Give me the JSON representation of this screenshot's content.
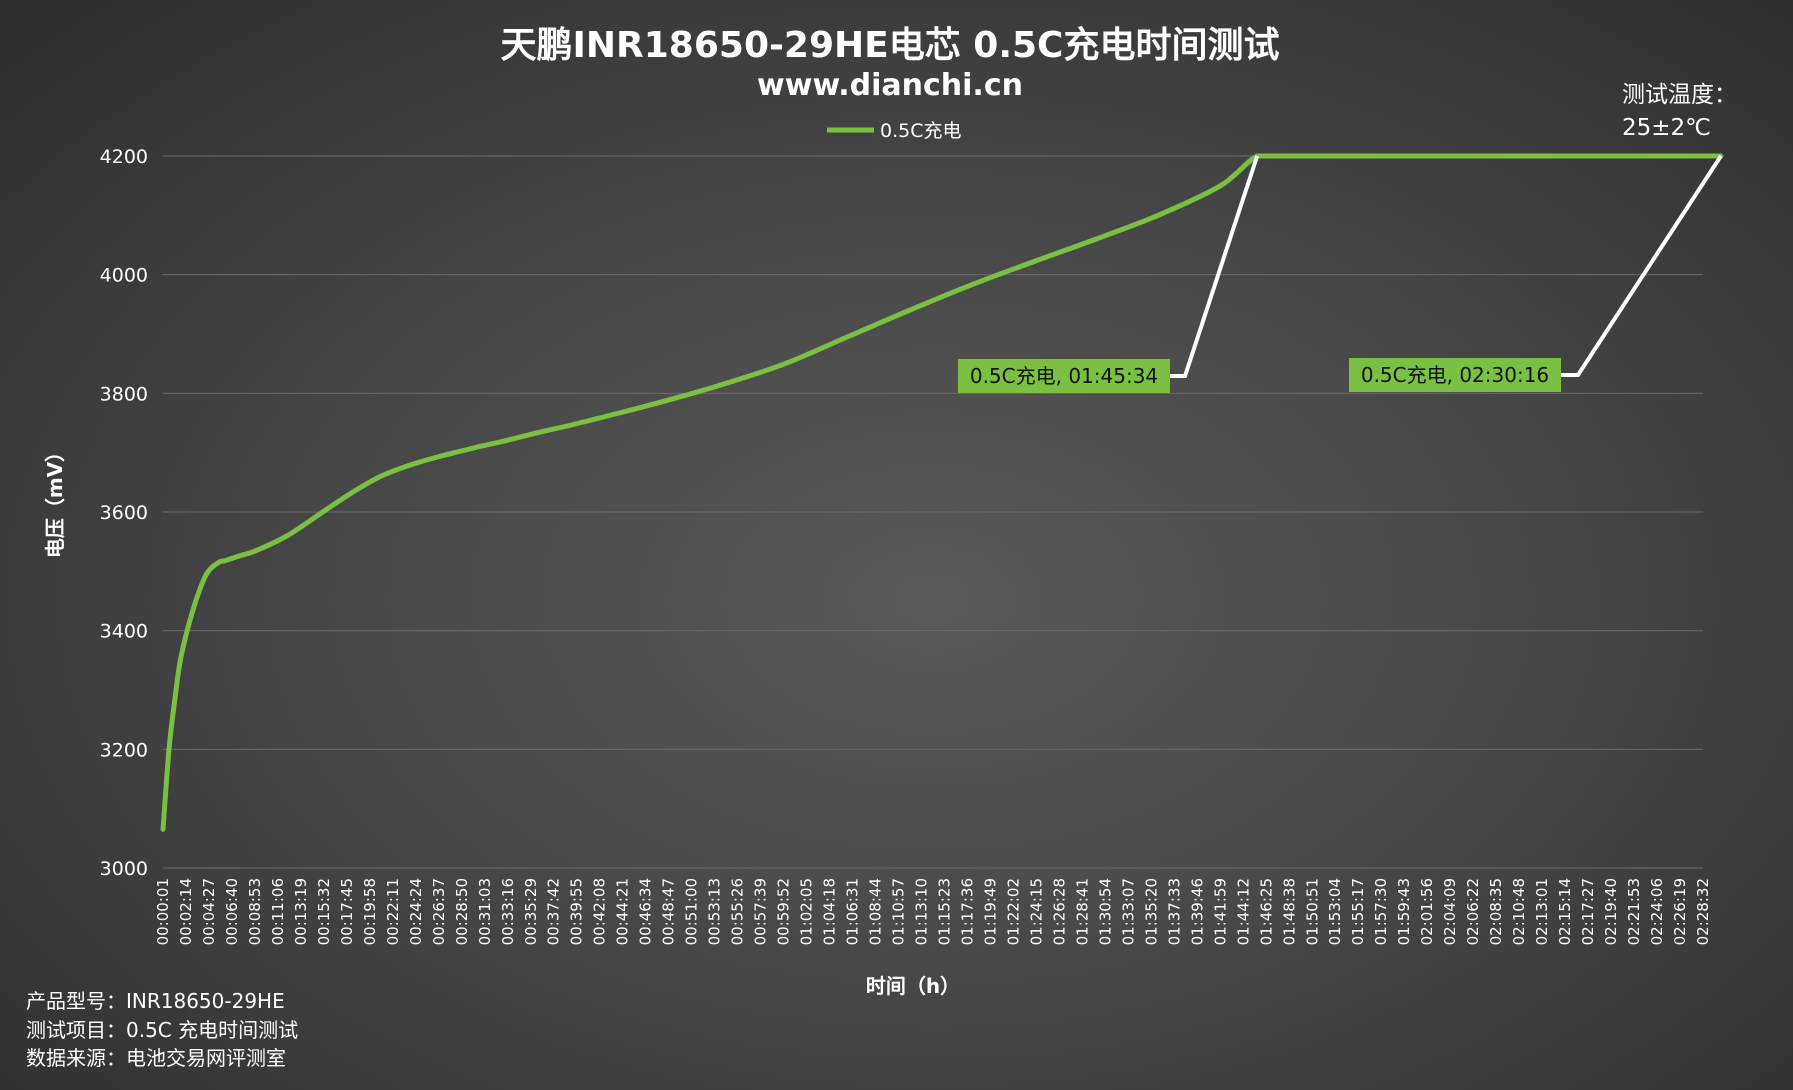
{
  "colors": {
    "series": "#7ac143",
    "label_box": "#7ac143",
    "grid": "#6a6a6a",
    "leader": "#ffffff"
  },
  "chart_data": {
    "type": "line",
    "title": "天鹏INR18650-29HE电芯 0.5C充电时间测试",
    "subtitle": "www.dianchi.cn",
    "xlabel": "时间（h）",
    "ylabel": "电压（mV）",
    "ylim": [
      3000,
      4200
    ],
    "yticks": [
      "3000",
      "3200",
      "3400",
      "3600",
      "3800",
      "4000",
      "4200"
    ],
    "grid": true,
    "legend_position": "top-center",
    "x_tick_labels": [
      "00:00:01",
      "00:02:14",
      "00:04:27",
      "00:06:40",
      "00:08:53",
      "00:11:06",
      "00:13:19",
      "00:15:32",
      "00:17:45",
      "00:19:58",
      "00:22:11",
      "00:24:24",
      "00:26:37",
      "00:28:50",
      "00:31:03",
      "00:33:16",
      "00:35:29",
      "00:37:42",
      "00:39:55",
      "00:42:08",
      "00:44:21",
      "00:46:34",
      "00:48:47",
      "00:51:00",
      "00:53:13",
      "00:55:26",
      "00:57:39",
      "00:59:52",
      "01:02:05",
      "01:04:18",
      "01:06:31",
      "01:08:44",
      "01:10:57",
      "01:13:10",
      "01:15:23",
      "01:17:36",
      "01:19:49",
      "01:22:02",
      "01:24:15",
      "01:26:28",
      "01:28:41",
      "01:30:54",
      "01:33:07",
      "01:35:20",
      "01:37:33",
      "01:39:46",
      "01:41:59",
      "01:44:12",
      "01:46:25",
      "01:48:38",
      "01:50:51",
      "01:53:04",
      "01:55:17",
      "01:57:30",
      "01:59:43",
      "02:01:56",
      "02:04:09",
      "02:06:22",
      "02:08:35",
      "02:10:48",
      "02:13:01",
      "02:15:14",
      "02:17:27",
      "02:19:40",
      "02:21:53",
      "02:24:06",
      "02:26:19",
      "02:28:32"
    ],
    "series": [
      {
        "name": "0.5C充电",
        "x": [
          0.0003,
          0.01,
          0.02,
          0.03,
          0.05,
          0.07,
          0.09,
          0.1,
          0.12,
          0.15,
          0.2,
          0.25,
          0.3,
          0.35,
          0.4,
          0.45,
          0.5,
          0.55,
          0.6,
          0.65,
          0.7,
          0.8,
          0.9,
          1.0,
          1.1,
          1.2,
          1.3,
          1.4,
          1.5,
          1.6,
          1.7,
          1.759,
          1.8,
          1.9,
          2.0,
          2.1,
          2.2,
          2.3,
          2.4,
          2.5044
        ],
        "values": [
          3065,
          3200,
          3290,
          3360,
          3440,
          3495,
          3515,
          3518,
          3525,
          3535,
          3560,
          3595,
          3630,
          3660,
          3680,
          3695,
          3708,
          3720,
          3733,
          3745,
          3758,
          3785,
          3815,
          3850,
          3895,
          3940,
          3983,
          4022,
          4060,
          4100,
          4150,
          4200,
          4200,
          4200,
          4200,
          4200,
          4200,
          4200,
          4200,
          4200
        ]
      }
    ],
    "annotations": [
      {
        "text": "0.5C充电, 01:45:34",
        "x": 1.759,
        "y": 4200
      },
      {
        "text": "0.5C充电, 02:30:16",
        "x": 2.5044,
        "y": 4200
      }
    ]
  },
  "temperature": {
    "line1": "测试温度：",
    "line2": "25±2℃"
  },
  "footer": {
    "model": "产品型号：INR18650-29HE",
    "item": "测试项目：0.5C 充电时间测试",
    "source": "数据来源：电池交易网评测室"
  }
}
